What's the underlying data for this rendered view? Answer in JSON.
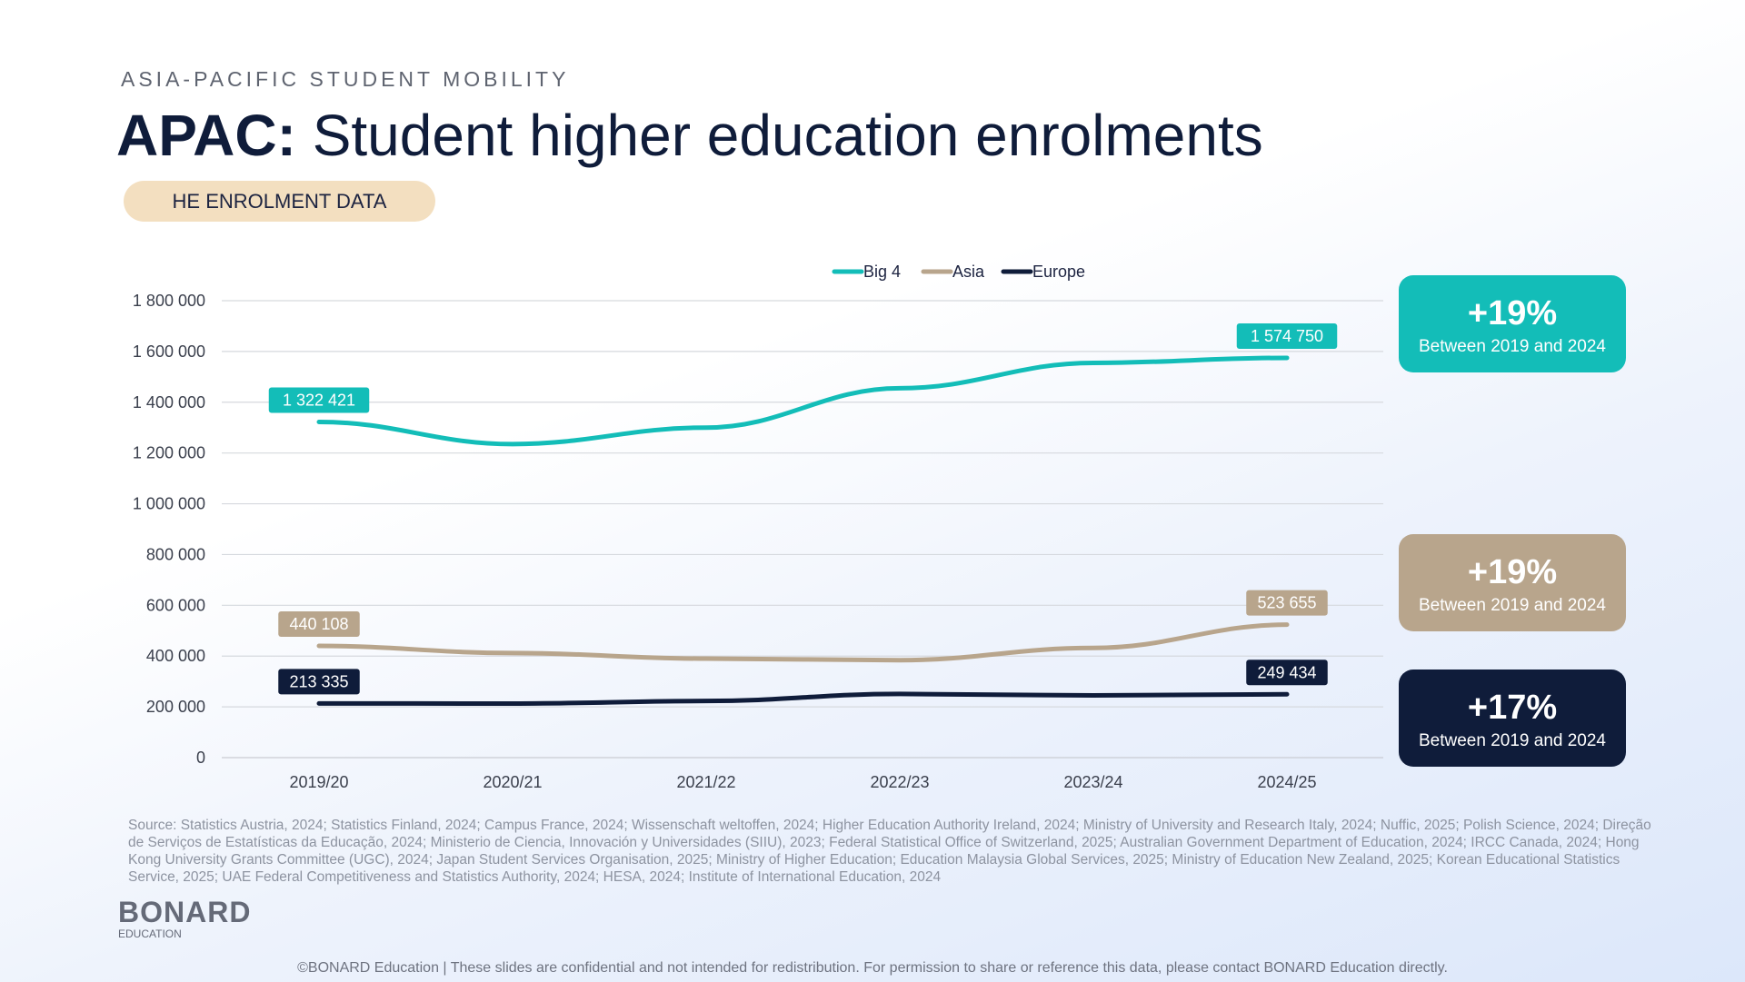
{
  "header": {
    "eyebrow": "ASIA-PACIFIC STUDENT MOBILITY",
    "title_bold": "APAC:",
    "title_rest": " Student higher education enrolments",
    "pill": "HE ENROLMENT DATA"
  },
  "callouts": [
    {
      "pct": "+19%",
      "sub": "Between 2019 and 2024",
      "color": "#13bdb8"
    },
    {
      "pct": "+19%",
      "sub": "Between 2019 and 2024",
      "color": "#b8a58c"
    },
    {
      "pct": "+17%",
      "sub": "Between 2019 and 2024",
      "color": "#0f1c3a"
    }
  ],
  "chart_data": {
    "type": "line",
    "title": "",
    "xlabel": "",
    "ylabel": "",
    "categories": [
      "2019/20",
      "2020/21",
      "2021/22",
      "2022/23",
      "2023/24",
      "2024/25"
    ],
    "ylim": [
      0,
      1800000
    ],
    "yticks": [
      0,
      200000,
      400000,
      600000,
      800000,
      1000000,
      1200000,
      1400000,
      1600000,
      1800000
    ],
    "ytick_labels": [
      "0",
      "200 000",
      "400 000",
      "600 000",
      "800 000",
      "1 000 000",
      "1 200 000",
      "1 400 000",
      "1 600 000",
      "1 800 000"
    ],
    "grid": true,
    "legend_position": "top-center",
    "series": [
      {
        "name": "Big 4",
        "color": "#13bdb8",
        "values": [
          1322421,
          1235000,
          1300000,
          1455000,
          1555000,
          1574750
        ],
        "labels": [
          {
            "index": 0,
            "text": "1 322 421"
          },
          {
            "index": 5,
            "text": "1 574 750"
          }
        ]
      },
      {
        "name": "Asia",
        "color": "#b8a58c",
        "values": [
          440108,
          412000,
          390000,
          384000,
          432000,
          523655
        ],
        "labels": [
          {
            "index": 0,
            "text": "440 108"
          },
          {
            "index": 5,
            "text": "523 655"
          }
        ]
      },
      {
        "name": "Europe",
        "color": "#0f1c3a",
        "values": [
          213335,
          213000,
          223000,
          251000,
          245000,
          249434
        ],
        "labels": [
          {
            "index": 0,
            "text": "213 335"
          },
          {
            "index": 5,
            "text": "249 434"
          }
        ]
      }
    ]
  },
  "source": "Source: Statistics Austria, 2024; Statistics Finland, 2024; Campus France, 2024; Wissenschaft weltoffen, 2024; Higher Education Authority Ireland, 2024; Ministry of University and Research Italy, 2024; Nuffic, 2025; Polish Science, 2024; Direção de Serviços de Estatísticas da Educação, 2024; Ministerio de Ciencia, Innovación y Universidades (SIIU), 2023; Federal Statistical Office of Switzerland, 2025; Australian Government Department of Education, 2024; IRCC Canada, 2024; Hong Kong University Grants Committee (UGC), 2024; Japan Student Services Organisation, 2025; Ministry of Higher Education; Education Malaysia Global Services, 2025; Ministry of Education New Zealand, 2025; Korean Educational Statistics Service, 2025; UAE Federal Competitiveness and Statistics Authority, 2024; HESA, 2024; Institute of International Education, 2024",
  "logo": {
    "line1": "BONARD",
    "line2": "EDUCATION"
  },
  "footer": "©BONARD Education | These slides are confidential and not intended for redistribution. For permission to share or reference this data, please contact BONARD Education directly."
}
